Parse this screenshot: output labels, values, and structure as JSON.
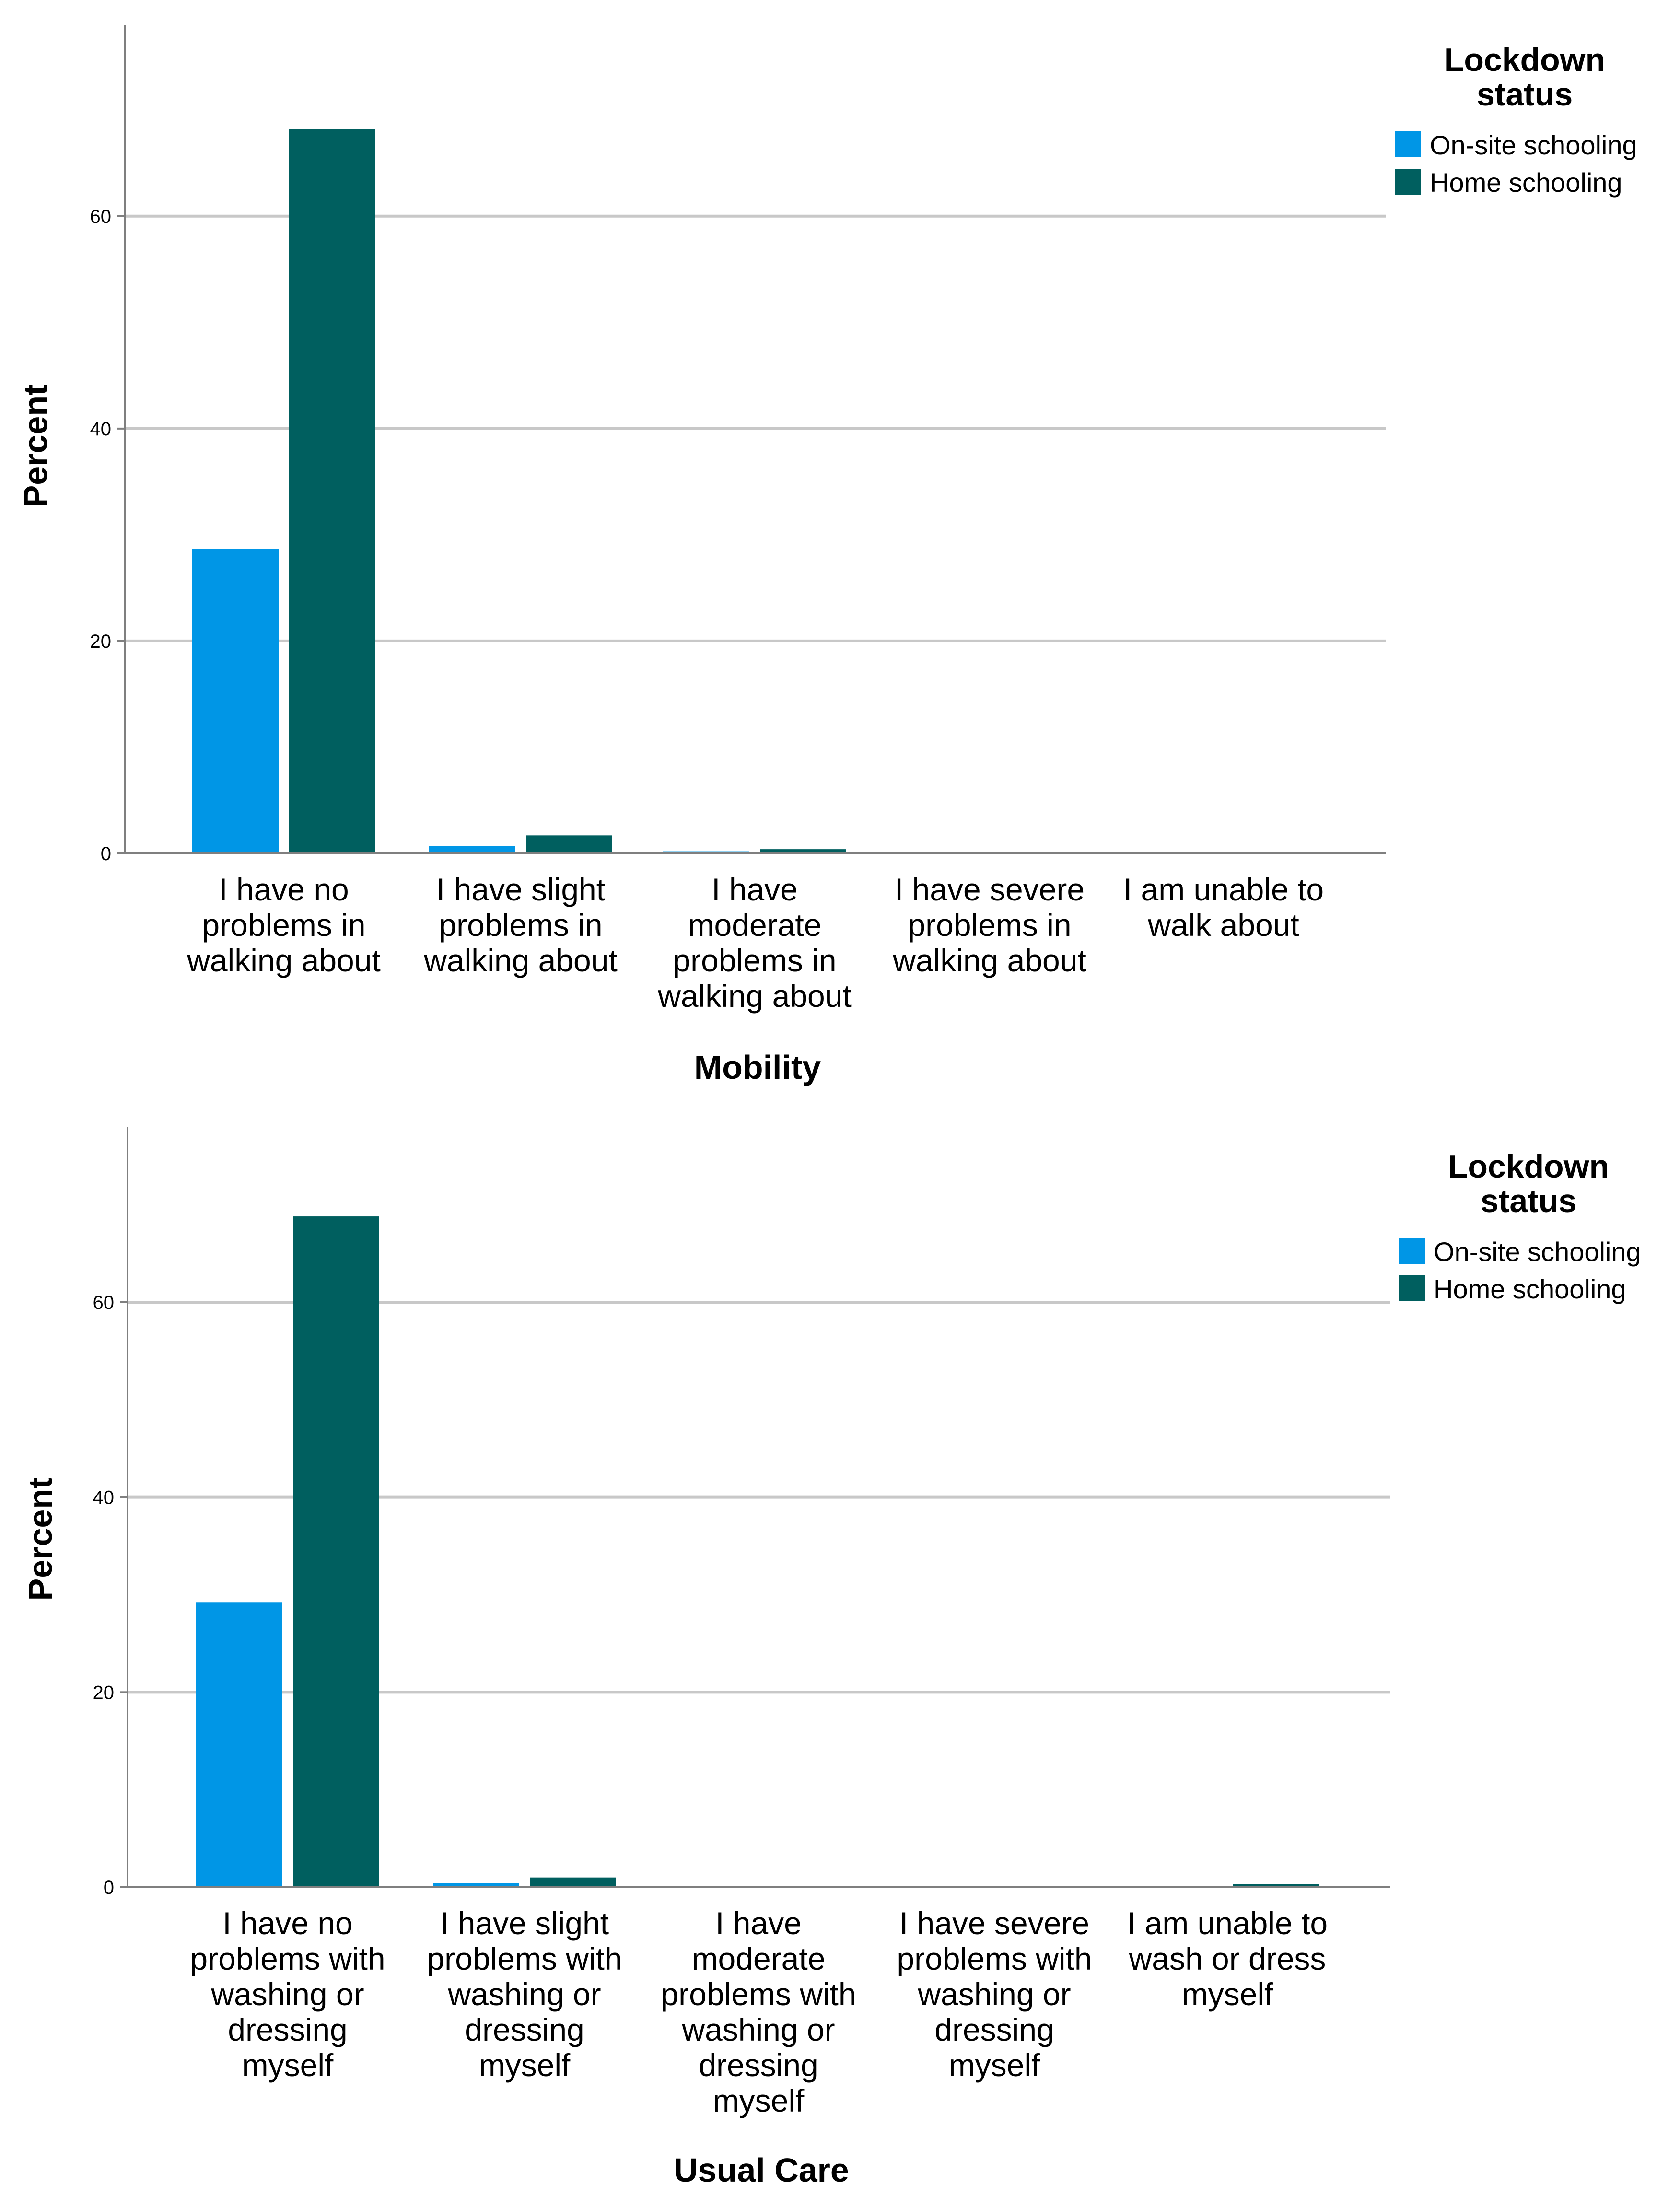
{
  "legend": {
    "title_line1": "Lockdown",
    "title_line2": "status",
    "items": [
      {
        "label": "On-site schooling",
        "color": "#0096e6"
      },
      {
        "label": "Home schooling",
        "color": "#005f5f"
      }
    ]
  },
  "chart_data": [
    {
      "type": "bar",
      "title": "",
      "xlabel": "Mobility",
      "ylabel": "Percent",
      "ylim": [
        0,
        78
      ],
      "yticks": [
        "0",
        "20",
        "40",
        "60"
      ],
      "categories": [
        [
          "I have no",
          "problems in",
          "walking about"
        ],
        [
          "I have slight",
          "problems in",
          "walking about"
        ],
        [
          "I have",
          "moderate",
          "problems in",
          "walking about"
        ],
        [
          "I have severe",
          "problems in",
          "walking about"
        ],
        [
          "I am unable to",
          "walk about"
        ]
      ],
      "series": [
        {
          "name": "On-site schooling",
          "values": [
            28.7,
            0.7,
            0.2,
            0.0,
            0.0
          ]
        },
        {
          "name": "Home schooling",
          "values": [
            68.2,
            1.7,
            0.4,
            0.1,
            0.1
          ]
        }
      ]
    },
    {
      "type": "bar",
      "title": "",
      "xlabel": "Usual Care",
      "ylabel": "Percent",
      "ylim": [
        0,
        78
      ],
      "yticks": [
        "0",
        "20",
        "40",
        "60"
      ],
      "categories": [
        [
          "I have no",
          "problems with",
          "washing or",
          "dressing",
          "myself"
        ],
        [
          "I have slight",
          "problems with",
          "washing or",
          "dressing",
          "myself"
        ],
        [
          "I have",
          "moderate",
          "problems with",
          "washing or",
          "dressing",
          "myself"
        ],
        [
          "I have severe",
          "problems with",
          "washing or",
          "dressing",
          "myself"
        ],
        [
          "I am unable to",
          "wash or dress",
          "myself"
        ]
      ],
      "series": [
        {
          "name": "On-site schooling",
          "values": [
            29.2,
            0.4,
            0.1,
            0.0,
            0.1
          ]
        },
        {
          "name": "Home schooling",
          "values": [
            68.8,
            1.0,
            0.1,
            0.0,
            0.3
          ]
        }
      ]
    }
  ]
}
